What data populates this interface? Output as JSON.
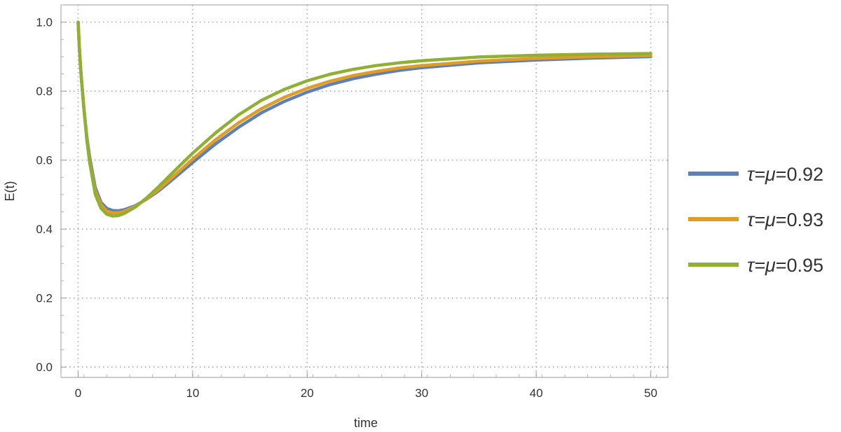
{
  "chart_data": {
    "type": "line",
    "xlabel": "time",
    "ylabel": "E(t)",
    "xlim": [
      -1.5,
      51.5
    ],
    "ylim": [
      -0.03,
      1.05
    ],
    "xticks": [
      0,
      10,
      20,
      30,
      40,
      50
    ],
    "yticks": [
      0.0,
      0.2,
      0.4,
      0.6,
      0.8,
      1.0
    ],
    "xtick_labels": [
      "0",
      "10",
      "20",
      "30",
      "40",
      "50"
    ],
    "ytick_labels": [
      "0.0",
      "0.2",
      "0.4",
      "0.6",
      "0.8",
      "1.0"
    ],
    "grid": true,
    "legend_position": "right",
    "series": [
      {
        "name": "τ=μ=0.92",
        "legend_prefix": "τ=μ",
        "legend_value": "=0.92",
        "color": "#5E81B5",
        "x": [
          0,
          0.1,
          0.25,
          0.5,
          0.75,
          1,
          1.5,
          2,
          2.5,
          3,
          3.5,
          4,
          5,
          6,
          7,
          8,
          9,
          10,
          12,
          14,
          16,
          18,
          20,
          22,
          24,
          26,
          28,
          30,
          35,
          40,
          45,
          50
        ],
        "y": [
          1.0,
          0.93,
          0.85,
          0.75,
          0.67,
          0.61,
          0.52,
          0.477,
          0.46,
          0.454,
          0.453,
          0.456,
          0.468,
          0.487,
          0.51,
          0.537,
          0.565,
          0.593,
          0.647,
          0.695,
          0.737,
          0.77,
          0.797,
          0.819,
          0.836,
          0.849,
          0.86,
          0.868,
          0.882,
          0.89,
          0.896,
          0.9
        ]
      },
      {
        "name": "τ=μ=0.93",
        "legend_prefix": "τ=μ",
        "legend_value": "=0.93",
        "color": "#E19C24",
        "x": [
          0,
          0.1,
          0.25,
          0.5,
          0.75,
          1,
          1.5,
          2,
          2.5,
          3,
          3.5,
          4,
          5,
          6,
          7,
          8,
          9,
          10,
          12,
          14,
          16,
          18,
          20,
          22,
          24,
          26,
          28,
          30,
          35,
          40,
          45,
          50
        ],
        "y": [
          1.0,
          0.93,
          0.85,
          0.75,
          0.665,
          0.6,
          0.51,
          0.47,
          0.452,
          0.447,
          0.447,
          0.451,
          0.466,
          0.488,
          0.514,
          0.543,
          0.573,
          0.603,
          0.659,
          0.708,
          0.749,
          0.782,
          0.808,
          0.829,
          0.845,
          0.857,
          0.867,
          0.874,
          0.887,
          0.895,
          0.9,
          0.903
        ]
      },
      {
        "name": "τ=μ=0.95",
        "legend_prefix": "τ=μ",
        "legend_value": "=0.95",
        "color": "#8FB032",
        "x": [
          0,
          0.1,
          0.25,
          0.5,
          0.75,
          1,
          1.5,
          2,
          2.5,
          3,
          3.5,
          4,
          5,
          6,
          7,
          8,
          9,
          10,
          12,
          14,
          16,
          18,
          20,
          22,
          24,
          26,
          28,
          30,
          35,
          40,
          45,
          50
        ],
        "y": [
          1.0,
          0.93,
          0.85,
          0.75,
          0.66,
          0.595,
          0.5,
          0.46,
          0.443,
          0.438,
          0.439,
          0.445,
          0.464,
          0.491,
          0.522,
          0.555,
          0.588,
          0.62,
          0.679,
          0.731,
          0.773,
          0.805,
          0.83,
          0.849,
          0.863,
          0.874,
          0.882,
          0.888,
          0.899,
          0.904,
          0.907,
          0.909
        ]
      }
    ]
  }
}
